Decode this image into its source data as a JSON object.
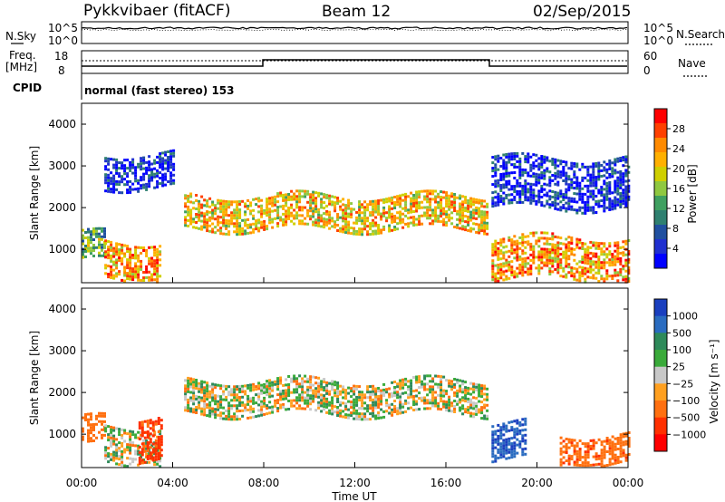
{
  "header": {
    "station": "Pykkvibaer (fitACF)",
    "beam": "Beam 12",
    "date": "02/Sep/2015"
  },
  "top_panels": {
    "nsky_label": "N.Sky",
    "nsearch_label": "N.Search",
    "noise_ticks": [
      "10^5",
      "10^0"
    ],
    "freq_label_1": "Freq.",
    "freq_label_2": "[MHz]",
    "freq_ticks": [
      "18",
      "8"
    ],
    "nave_label": "Nave",
    "nave_ticks": [
      "60",
      "0"
    ],
    "cpid_label": "CPID",
    "cpid_text": "normal (fast stereo) 153"
  },
  "axes": {
    "xlabel": "Time UT",
    "ylabel": "Slant Range [km]"
  },
  "colorbars": {
    "power_label": "Power [dB]",
    "power_ticks": [
      "28",
      "24",
      "20",
      "16",
      "12",
      "8",
      "4"
    ],
    "power_colors": [
      "#ff0000",
      "#ff4000",
      "#ff8a00",
      "#ffb000",
      "#cfcf00",
      "#8fc840",
      "#3fa060",
      "#2f8070",
      "#2050a0",
      "#2030d0",
      "#0000ff"
    ],
    "velocity_label": "Velocity [m s⁻¹]",
    "velocity_ticks": [
      "1000",
      "500",
      "100",
      "25",
      "−25",
      "−100",
      "−500",
      "−1000"
    ],
    "velocity_colors": [
      "#1a3fbf",
      "#2a6cc0",
      "#2e8a5a",
      "#3aaa3a",
      "#c8c8c8",
      "#ffa020",
      "#ff7010",
      "#ff3000",
      "#ff0000"
    ]
  },
  "chart_data": [
    {
      "type": "heatmap",
      "name": "Power",
      "xlabel": "Time UT",
      "ylabel": "Slant Range [km]",
      "x_ticks": [
        "00:00",
        "04:00",
        "08:00",
        "12:00",
        "16:00",
        "20:00",
        "00:00"
      ],
      "y_ticks": [
        1000,
        2000,
        3000,
        4000
      ],
      "xlim_hours": [
        0,
        24
      ],
      "ylim_km": [
        200,
        4500
      ],
      "colorbar": {
        "label": "Power [dB]",
        "ticks": [
          4,
          8,
          12,
          16,
          20,
          24,
          28
        ]
      },
      "echo_bands": [
        {
          "t_start": 0.0,
          "t_end": 1.0,
          "range_km": [
            700,
            1400
          ],
          "power_db": 14
        },
        {
          "t_start": 1.0,
          "t_end": 3.5,
          "range_km": [
            300,
            1200
          ],
          "power_db": 22
        },
        {
          "t_start": 1.0,
          "t_end": 4.0,
          "range_km": [
            2500,
            3300
          ],
          "power_db": 6
        },
        {
          "t_start": 4.5,
          "t_end": 17.8,
          "range_km": [
            1500,
            2300
          ],
          "power_db": 20
        },
        {
          "t_start": 18.0,
          "t_end": 24.0,
          "range_km": [
            300,
            1300
          ],
          "power_db": 22
        },
        {
          "t_start": 18.0,
          "t_end": 24.0,
          "range_km": [
            2000,
            3200
          ],
          "power_db": 6
        }
      ]
    },
    {
      "type": "heatmap",
      "name": "Velocity",
      "xlabel": "Time UT",
      "ylabel": "Slant Range [km]",
      "x_ticks": [
        "00:00",
        "04:00",
        "08:00",
        "12:00",
        "16:00",
        "20:00",
        "00:00"
      ],
      "y_ticks": [
        1000,
        2000,
        3000,
        4000
      ],
      "xlim_hours": [
        0,
        24
      ],
      "ylim_km": [
        200,
        4500
      ],
      "colorbar": {
        "label": "Velocity [m s⁻¹]",
        "ticks": [
          1000,
          500,
          100,
          25,
          -25,
          -100,
          -500,
          -1000
        ]
      },
      "echo_bands": [
        {
          "t_start": 0.0,
          "t_end": 1.0,
          "range_km": [
            700,
            1400
          ],
          "velocity_ms": -300
        },
        {
          "t_start": 1.0,
          "t_end": 3.5,
          "range_km": [
            300,
            1200
          ],
          "velocity_ms": 0
        },
        {
          "t_start": 2.5,
          "t_end": 3.5,
          "range_km": [
            400,
            1400
          ],
          "velocity_ms": -600
        },
        {
          "t_start": 4.5,
          "t_end": 17.8,
          "range_km": [
            1500,
            2300
          ],
          "velocity_ms": 0
        },
        {
          "t_start": 18.0,
          "t_end": 19.5,
          "range_km": [
            400,
            1300
          ],
          "velocity_ms": 700
        },
        {
          "t_start": 21.0,
          "t_end": 24.0,
          "range_km": [
            300,
            1000
          ],
          "velocity_ms": -400
        }
      ]
    }
  ]
}
